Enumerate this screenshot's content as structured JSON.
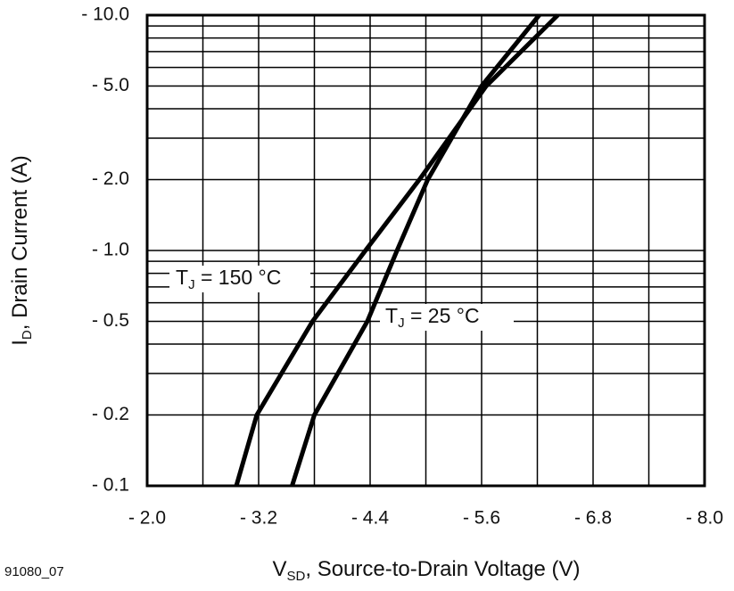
{
  "chart_data": {
    "type": "line",
    "x_label": {
      "symbol": "V",
      "subscript": "SD",
      "text": ", Source-to-Drain Voltage (V)"
    },
    "y_label": {
      "symbol": "I",
      "subscript": "D",
      "text": ", Drain Current (A)"
    },
    "footnote": "91080_07",
    "ylog": true,
    "grid": true,
    "xlim": [
      -2,
      -8
    ],
    "xticks": [
      {
        "value": -2,
        "label": "- 2.0"
      },
      {
        "value": -3.2,
        "label": "- 3.2"
      },
      {
        "value": -4.4,
        "label": "- 4.4"
      },
      {
        "value": -5.6,
        "label": "- 5.6"
      },
      {
        "value": -6.8,
        "label": "- 6.8"
      },
      {
        "value": -8,
        "label": "- 8.0"
      }
    ],
    "x_minor_grid": [
      -2.6,
      -3.8,
      -5,
      -6.2,
      -7.4
    ],
    "ylim": [
      -0.1,
      -10
    ],
    "yticks": [
      {
        "value": -0.1,
        "label": "- 0.1"
      },
      {
        "value": -0.2,
        "label": "- 0.2"
      },
      {
        "value": -0.5,
        "label": "- 0.5"
      },
      {
        "value": -1,
        "label": "- 1.0"
      },
      {
        "value": -2,
        "label": "- 2.0"
      },
      {
        "value": -5,
        "label": "- 5.0"
      },
      {
        "value": -10,
        "label": "- 10.0"
      }
    ],
    "y_minor_grid": [
      -0.3,
      -0.4,
      -0.6,
      -0.7,
      -0.8,
      -0.9,
      -3,
      -4,
      -6,
      -7,
      -8,
      -9
    ],
    "series": [
      {
        "name": {
          "symbol": "T",
          "subscript": "J",
          "text": " = 150 °C"
        },
        "color": "#000000",
        "x": [
          -2.96,
          -3.18,
          -3.78,
          -4.35,
          -4.93,
          -5.65,
          -6.42
        ],
        "values": [
          -0.1,
          -0.2,
          -0.5,
          -1,
          -2,
          -5,
          -10
        ]
      },
      {
        "name": {
          "symbol": "T",
          "subscript": "J",
          "text": " = 25 °C"
        },
        "color": "#000000",
        "x": [
          -3.56,
          -3.8,
          -4.37,
          -4.69,
          -5.02,
          -5.6,
          -6.22
        ],
        "values": [
          -0.1,
          -0.2,
          -0.5,
          -1,
          -2,
          -5,
          -10
        ]
      }
    ]
  }
}
